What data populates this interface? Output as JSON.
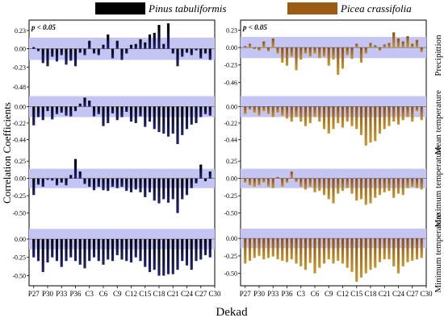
{
  "legend": [
    {
      "label": "Pinus tabuliformis",
      "color": "#000000"
    },
    {
      "label": "Picea crassifolia",
      "color": "#9a5b15"
    }
  ],
  "colors": {
    "band": "#c5c5f3",
    "left_gradient_bottom": "#1f2370",
    "right_gradient_bottom": "#c8962e"
  },
  "chart_data": {
    "type": "bar",
    "ylabel": "Correlation Coefficients",
    "xlabel": "Dekad",
    "significance_label": "p < 0.05",
    "x_ticks": [
      "P27",
      "P30",
      "P33",
      "P36",
      "C3",
      "C6",
      "C9",
      "C12",
      "C15",
      "C18",
      "C21",
      "C24",
      "C27",
      "C30"
    ],
    "significance_band": {
      "Precipittion": 0.14,
      "Mean temperature": 0.14,
      "Maximum temperature": 0.14,
      "Minimum temperature": 0.14
    },
    "panels": [
      {
        "species": "Pinus tabuliformis",
        "rows": [
          {
            "variable": "Precipittion",
            "yticks": [
              0.23,
              0.0,
              -0.23,
              -0.48
            ],
            "ylim": [
              -0.48,
              0.33
            ],
            "values": [
              0.02,
              -0.03,
              -0.18,
              -0.22,
              -0.1,
              -0.16,
              -0.08,
              -0.2,
              -0.15,
              -0.22,
              -0.05,
              -0.08,
              0.1,
              -0.06,
              -0.08,
              0.05,
              0.18,
              -0.12,
              0.1,
              -0.14,
              -0.06,
              0.05,
              0.06,
              0.12,
              0.08,
              0.18,
              0.2,
              0.3,
              0.06,
              0.32,
              -0.06,
              -0.22,
              -0.1,
              -0.05,
              -0.08,
              -0.02,
              -0.12,
              -0.06,
              -0.14
            ]
          },
          {
            "variable": "Mean temperature",
            "yticks": [
              0.0,
              -0.22,
              -0.44
            ],
            "ylim": [
              -0.64,
              0.22
            ],
            "values": [
              -0.25,
              -0.14,
              -0.18,
              -0.06,
              -0.17,
              -0.1,
              -0.08,
              -0.12,
              -0.13,
              -0.06,
              0.04,
              0.12,
              0.08,
              -0.13,
              -0.1,
              -0.26,
              -0.22,
              -0.09,
              -0.18,
              -0.14,
              -0.07,
              -0.2,
              -0.22,
              -0.13,
              -0.27,
              -0.2,
              -0.3,
              -0.34,
              -0.36,
              -0.4,
              -0.36,
              -0.5,
              -0.38,
              -0.3,
              -0.24,
              -0.22,
              -0.14,
              -0.1,
              -0.12
            ]
          },
          {
            "variable": "Maximum temperature",
            "yticks": [
              0.25,
              0.0,
              -0.25,
              -0.5
            ],
            "ylim": [
              -0.62,
              0.31
            ],
            "values": [
              -0.24,
              -0.09,
              -0.12,
              -0.02,
              -0.03,
              -0.1,
              -0.06,
              -0.1,
              0.05,
              0.28,
              0.1,
              -0.08,
              -0.12,
              -0.17,
              -0.12,
              -0.17,
              -0.18,
              -0.12,
              -0.14,
              -0.12,
              -0.18,
              -0.2,
              -0.16,
              -0.2,
              -0.27,
              -0.2,
              -0.32,
              -0.36,
              -0.3,
              -0.35,
              -0.3,
              -0.5,
              -0.3,
              -0.24,
              -0.14,
              -0.07,
              0.2,
              -0.04,
              0.1
            ]
          },
          {
            "variable": "Minimum temperature",
            "yticks": [
              0.0,
              -0.25,
              -0.5
            ],
            "ylim": [
              -0.66,
              0.22
            ],
            "values": [
              -0.25,
              -0.3,
              -0.45,
              -0.32,
              -0.25,
              -0.3,
              -0.38,
              -0.3,
              -0.25,
              -0.3,
              -0.35,
              -0.4,
              -0.3,
              -0.25,
              -0.3,
              -0.35,
              -0.28,
              -0.3,
              -0.22,
              -0.28,
              -0.3,
              -0.32,
              -0.25,
              -0.3,
              -0.38,
              -0.45,
              -0.42,
              -0.5,
              -0.5,
              -0.48,
              -0.48,
              -0.42,
              -0.3,
              -0.36,
              -0.42,
              -0.3,
              -0.28,
              -0.22,
              -0.25
            ]
          }
        ]
      },
      {
        "species": "Picea crassifolia",
        "rows": [
          {
            "variable": "Precipittion",
            "yticks": [
              0.23,
              0.0,
              -0.23,
              -0.46
            ],
            "ylim": [
              -0.52,
              0.33
            ],
            "values": [
              0.02,
              0.05,
              -0.02,
              -0.04,
              0.08,
              -0.05,
              0.12,
              -0.08,
              -0.2,
              -0.24,
              -0.12,
              -0.3,
              -0.16,
              -0.08,
              -0.12,
              -0.08,
              -0.14,
              -0.12,
              -0.24,
              -0.16,
              -0.36,
              -0.28,
              -0.1,
              -0.15,
              0.05,
              -0.2,
              -0.08,
              0.06,
              0.03,
              -0.04,
              0.04,
              0.06,
              0.2,
              0.12,
              0.08,
              0.15,
              0.05,
              0.1,
              -0.06
            ]
          },
          {
            "variable": "Mean temperature",
            "yticks": [
              0.0,
              -0.22,
              -0.44
            ],
            "ylim": [
              -0.64,
              0.22
            ],
            "values": [
              -0.1,
              -0.04,
              -0.08,
              -0.12,
              -0.06,
              -0.1,
              -0.14,
              -0.08,
              -0.12,
              -0.16,
              -0.2,
              -0.14,
              -0.2,
              -0.26,
              -0.22,
              -0.14,
              -0.2,
              -0.3,
              -0.36,
              -0.3,
              -0.22,
              -0.28,
              -0.2,
              -0.26,
              -0.3,
              -0.38,
              -0.52,
              -0.48,
              -0.46,
              -0.36,
              -0.3,
              -0.26,
              -0.2,
              -0.24,
              -0.18,
              -0.14,
              -0.2,
              -0.06,
              -0.18
            ]
          },
          {
            "variable": "Maximum temperature",
            "yticks": [
              0.25,
              0.0,
              -0.25,
              -0.5
            ],
            "ylim": [
              -0.62,
              0.31
            ],
            "values": [
              -0.06,
              -0.1,
              -0.12,
              -0.1,
              -0.06,
              -0.12,
              -0.14,
              0.02,
              -0.12,
              -0.06,
              0.1,
              -0.05,
              -0.12,
              -0.16,
              -0.12,
              -0.2,
              -0.18,
              -0.24,
              -0.3,
              -0.36,
              -0.22,
              -0.18,
              -0.14,
              -0.22,
              -0.32,
              -0.3,
              -0.38,
              -0.36,
              -0.28,
              -0.24,
              -0.2,
              -0.18,
              -0.28,
              -0.22,
              -0.24,
              -0.14,
              -0.12,
              -0.14,
              -0.16
            ]
          },
          {
            "variable": "Minimum temperature",
            "yticks": [
              0.0,
              -0.25,
              -0.5
            ],
            "ylim": [
              -0.7,
              0.22
            ],
            "values": [
              -0.36,
              -0.32,
              -0.28,
              -0.25,
              -0.3,
              -0.28,
              -0.26,
              -0.3,
              -0.32,
              -0.34,
              -0.3,
              -0.36,
              -0.4,
              -0.45,
              -0.35,
              -0.5,
              -0.42,
              -0.36,
              -0.3,
              -0.36,
              -0.32,
              -0.36,
              -0.42,
              -0.48,
              -0.62,
              -0.56,
              -0.5,
              -0.45,
              -0.42,
              -0.34,
              -0.3,
              -0.3,
              -0.4,
              -0.5,
              -0.4,
              -0.34,
              -0.32,
              -0.3,
              -0.28
            ]
          }
        ]
      }
    ]
  }
}
